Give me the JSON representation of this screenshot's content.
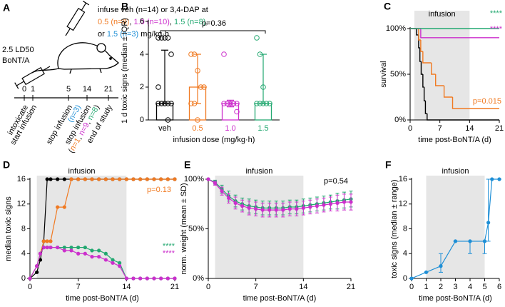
{
  "diagram": {
    "label": "A",
    "dose_text": "2.5 LD50",
    "toxin": "BoNT/A",
    "infusion_lines": [
      [
        {
          "text": "infuse veh (n=14) or 3,4-DAP at",
          "color": "#000000"
        }
      ],
      [
        {
          "text": "0.5 (n=8)",
          "color": "#f07a22"
        },
        {
          "text": ", ",
          "color": "#000000"
        },
        {
          "text": "1.0 (n=10)",
          "color": "#cc2fcc"
        },
        {
          "text": ", ",
          "color": "#000000"
        },
        {
          "text": "1.5 (n=8)",
          "color": "#22a870"
        },
        {
          "text": ",",
          "color": "#000000"
        }
      ],
      [
        {
          "text": "or ",
          "color": "#000000"
        },
        {
          "text": "1.5 (n=3)",
          "color": "#1e8fd6"
        },
        {
          "text": " mg/kg·h",
          "color": "#000000"
        }
      ]
    ],
    "days": [
      0,
      1,
      5,
      14,
      21
    ],
    "events": [
      [
        [
          {
            "text": "intoxicate",
            "color": "#000000"
          }
        ]
      ],
      [
        [
          {
            "text": "start infusion",
            "color": "#000000"
          }
        ]
      ],
      [
        [
          {
            "text": "stop infusion",
            "color": "#000000"
          }
        ],
        [
          {
            "text": "(n=3)",
            "color": "#1e8fd6"
          }
        ]
      ],
      [
        [
          {
            "text": "stop infusion",
            "color": "#000000"
          }
        ],
        [
          {
            "text": "(",
            "color": "#000000"
          },
          {
            "text": "n=1",
            "color": "#f07a22"
          },
          {
            "text": ", ",
            "color": "#000000"
          },
          {
            "text": "n=9",
            "color": "#cc2fcc"
          },
          {
            "text": ", ",
            "color": "#000000"
          },
          {
            "text": "n=8",
            "color": "#22a870"
          },
          {
            "text": ")",
            "color": "#000000"
          }
        ]
      ],
      [
        [
          {
            "text": "end of study",
            "color": "#000000"
          }
        ]
      ]
    ]
  },
  "chart_data": [
    {
      "label": "B",
      "type": "bar",
      "ylabel": "1 d toxic signs (median ± IQR)",
      "xlabel": "infusion dose (mg/kg·h)",
      "categories": [
        "veh",
        "0.5",
        "1.0",
        "1.5"
      ],
      "colors": [
        "#000000",
        "#f07a22",
        "#cc2fcc",
        "#22a870"
      ],
      "values": [
        1,
        2,
        1,
        1
      ],
      "iqr_low": [
        1,
        1,
        0.8,
        1
      ],
      "iqr_high": [
        4.25,
        4,
        1.2,
        4
      ],
      "points": [
        [
          5,
          5,
          5,
          5,
          4,
          2,
          1,
          1,
          1,
          1,
          1,
          1,
          1,
          0
        ],
        [
          4,
          4,
          3,
          2,
          2,
          1,
          1,
          0
        ],
        [
          4,
          1,
          1,
          1,
          1,
          1,
          1,
          1,
          1,
          0.5
        ],
        [
          5,
          4,
          2,
          1,
          1,
          1,
          1,
          1
        ]
      ],
      "ylim": [
        0,
        6
      ],
      "yticks": [
        0,
        2,
        4,
        6
      ],
      "annotations": [
        {
          "text": "p=0.36",
          "color": "#000000"
        }
      ]
    },
    {
      "label": "C",
      "type": "step",
      "ylabel": "survival",
      "xlabel": "time post-BoNT/A (d)",
      "shade": [
        1,
        14
      ],
      "shade_label": "infusion",
      "xlim": [
        0,
        21
      ],
      "xticks": [
        0,
        7,
        14,
        21
      ],
      "ylim": [
        0,
        100
      ],
      "yticks": [
        {
          "value": 0,
          "label": "0%"
        },
        {
          "value": 50,
          "label": "50%"
        },
        {
          "value": 100,
          "label": "100%"
        }
      ],
      "series": [
        {
          "color": "#000000",
          "x": [
            0,
            1.5,
            2,
            2.3,
            2.6,
            3,
            3.3,
            3.6,
            4
          ],
          "values": [
            100,
            93,
            79,
            64,
            50,
            36,
            21,
            7,
            0
          ]
        },
        {
          "color": "#f07a22",
          "x": [
            0,
            2,
            2.5,
            3,
            5,
            6,
            8,
            10
          ],
          "values": [
            100,
            87.5,
            75,
            62.5,
            50,
            37.5,
            25,
            12.5
          ]
        },
        {
          "color": "#cc2fcc",
          "x": [
            0,
            2.5
          ],
          "values": [
            100,
            90
          ]
        },
        {
          "color": "#22a870",
          "x": [
            0
          ],
          "values": [
            100
          ]
        }
      ],
      "annotations": [
        {
          "text": "****",
          "color": "#22a870"
        },
        {
          "text": "****",
          "color": "#cc2fcc"
        },
        {
          "text": "p=0.015",
          "color": "#f07a22"
        }
      ]
    },
    {
      "label": "D",
      "type": "line",
      "ylabel": "median toxic signs",
      "xlabel": "time post-BoNT/A (d)",
      "shade": [
        1,
        14
      ],
      "shade_label": "infusion",
      "xlim": [
        0,
        21
      ],
      "xticks": [
        0,
        7,
        14,
        21
      ],
      "ylim": [
        0,
        16
      ],
      "yticks": [
        0,
        4,
        8,
        12,
        16
      ],
      "x": [
        0,
        1,
        1.5,
        2,
        2.5,
        3,
        4,
        5,
        6,
        7,
        8,
        9,
        10,
        11,
        12,
        13,
        14,
        15,
        16,
        17,
        18,
        19,
        20,
        21
      ],
      "series": [
        {
          "color": "#000000",
          "values": [
            0,
            1,
            3,
            6,
            16,
            16,
            16,
            16,
            16,
            16,
            16,
            16,
            16,
            16,
            16,
            16,
            16,
            16,
            16,
            16,
            16,
            16,
            16,
            16
          ]
        },
        {
          "color": "#f07a22",
          "values": [
            0,
            2,
            4,
            6,
            6,
            6,
            11.5,
            11.5,
            16,
            16,
            16,
            16,
            16,
            16,
            16,
            16,
            16,
            16,
            16,
            16,
            16,
            16,
            16,
            16
          ]
        },
        {
          "color": "#22a870",
          "values": [
            0,
            2,
            4,
            5,
            5,
            5,
            5,
            5,
            5,
            5,
            5,
            4.5,
            4.5,
            4,
            3,
            2.5,
            0,
            0,
            0,
            0,
            0,
            0,
            0,
            0
          ]
        },
        {
          "color": "#cc2fcc",
          "values": [
            0,
            2,
            4,
            5,
            5,
            5,
            5,
            4.5,
            4.5,
            4,
            4,
            3.5,
            3.5,
            3,
            2.5,
            2,
            0,
            0,
            0,
            0,
            0,
            0,
            0,
            0
          ]
        }
      ],
      "annotations": [
        {
          "text": "p=0.13",
          "color": "#f07a22"
        },
        {
          "text": "****",
          "color": "#22a870"
        },
        {
          "text": "****",
          "color": "#cc2fcc"
        }
      ]
    },
    {
      "label": "E",
      "type": "line",
      "ylabel": "norm. weight (mean ± SD)",
      "xlabel": "time post-BoNT/A (d)",
      "shade": [
        1,
        14
      ],
      "shade_label": "infusion",
      "xlim": [
        0,
        21
      ],
      "xticks": [
        0,
        7,
        14,
        21
      ],
      "ylim": [
        0,
        100
      ],
      "yticks": [
        {
          "value": 0,
          "label": "0%"
        },
        {
          "value": 50,
          "label": "50%"
        },
        {
          "value": 100,
          "label": "100%"
        }
      ],
      "x": [
        0,
        1,
        2,
        3,
        4,
        5,
        6,
        7,
        8,
        9,
        10,
        11,
        12,
        13,
        14,
        15,
        16,
        17,
        18,
        19,
        20,
        21
      ],
      "series": [
        {
          "color": "#22a870",
          "values": [
            100,
            97,
            90,
            83,
            78,
            75,
            73,
            72,
            71,
            71,
            71,
            71,
            72,
            72,
            73,
            74,
            75,
            76,
            77,
            78,
            79,
            80
          ],
          "error": [
            0,
            2,
            4,
            5,
            6,
            6,
            7,
            7,
            7,
            7,
            7,
            7,
            7,
            7,
            7,
            7,
            7,
            7,
            7,
            8,
            8,
            8
          ]
        },
        {
          "color": "#cc2fcc",
          "values": [
            100,
            96,
            88,
            81,
            76,
            73,
            71,
            70,
            69,
            69,
            69,
            69,
            70,
            70,
            71,
            72,
            73,
            74,
            75,
            76,
            77,
            77
          ],
          "error": [
            0,
            2,
            4,
            5,
            6,
            6,
            7,
            7,
            7,
            7,
            7,
            7,
            7,
            7,
            7,
            7,
            7,
            7,
            7,
            8,
            8,
            8
          ]
        }
      ],
      "annotations": [
        {
          "text": "p=0.54",
          "color": "#000000"
        }
      ]
    },
    {
      "label": "F",
      "type": "line",
      "ylabel": "toxic signs (median ± range)",
      "xlabel": "time post-BoNT/A (d)",
      "shade": [
        1,
        5
      ],
      "shade_label": "infusion",
      "xlim": [
        0,
        6
      ],
      "xticks": [
        0,
        1,
        2,
        3,
        4,
        5,
        6
      ],
      "ylim": [
        0,
        16
      ],
      "yticks": [
        0,
        4,
        8,
        12,
        16
      ],
      "x": [
        0,
        1,
        2,
        3,
        4,
        5,
        5.25,
        5.5,
        6
      ],
      "series": [
        {
          "color": "#1e8fd6",
          "values": [
            0,
            1,
            2,
            6,
            6,
            6,
            9,
            16,
            16
          ],
          "err_low": [
            0,
            1,
            1,
            6,
            4,
            4,
            6,
            16,
            16
          ],
          "err_high": [
            0,
            1,
            4,
            6,
            6,
            6,
            16,
            16,
            16
          ]
        }
      ]
    }
  ]
}
